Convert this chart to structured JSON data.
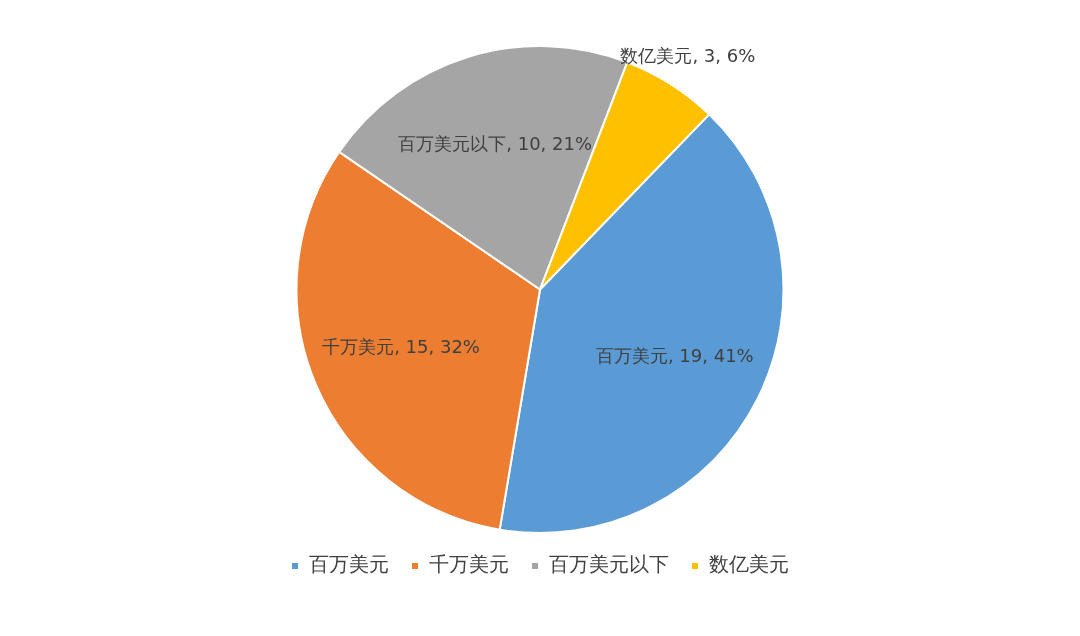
{
  "chart_data": {
    "type": "pie",
    "categories": [
      "百万美元",
      "千万美元",
      "百万美元以下",
      "数亿美元"
    ],
    "values": [
      19,
      15,
      10,
      3
    ],
    "colors": [
      "#5b9bd5",
      "#ed7d31",
      "#a5a5a5",
      "#ffc000"
    ],
    "value_labels": [
      "百万美元, 19, 41%",
      "千万美元, 15, 32%",
      "百万美元以下, 10, 21%",
      "数亿美元, 3, 6%"
    ],
    "legend": "bottom"
  }
}
